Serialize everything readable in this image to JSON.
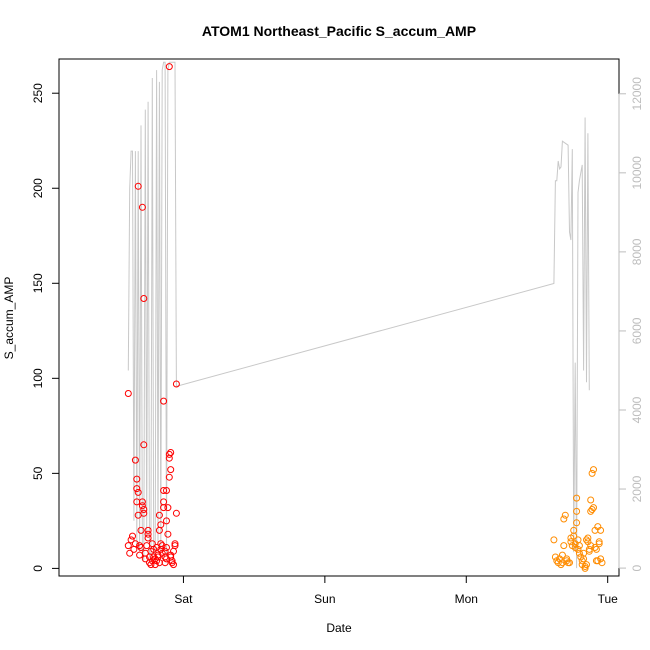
{
  "chart_data": {
    "type": "scatter",
    "title": "ATOM1 Northeast_Pacific S_accum_AMP",
    "xlabel": "Date",
    "ylabel": "S_accum_AMP",
    "x_unit": "days",
    "x_range": [
      -0.88,
      3.08
    ],
    "x_ticks": [
      {
        "label": "Sat",
        "value": 0
      },
      {
        "label": "Sun",
        "value": 1
      },
      {
        "label": "Mon",
        "value": 2
      },
      {
        "label": "Tue",
        "value": 3
      }
    ],
    "y_left": {
      "range": [
        -4,
        268
      ],
      "ticks": [
        0,
        50,
        100,
        150,
        200,
        250
      ]
    },
    "y_right": {
      "range": [
        -200,
        12880
      ],
      "ticks": [
        0,
        2000,
        4000,
        6000,
        8000,
        10000,
        12000
      ],
      "color": "#bdbdbd"
    },
    "grid": false,
    "series": [
      {
        "kind": "points",
        "color": "#ff0000",
        "points": [
          [
            -0.39,
            92
          ],
          [
            -0.39,
            12
          ],
          [
            -0.38,
            8
          ],
          [
            -0.37,
            15
          ],
          [
            -0.36,
            17
          ],
          [
            -0.35,
            10
          ],
          [
            -0.34,
            13
          ],
          [
            -0.34,
            57
          ],
          [
            -0.33,
            42
          ],
          [
            -0.33,
            47
          ],
          [
            -0.33,
            35
          ],
          [
            -0.32,
            201
          ],
          [
            -0.32,
            40
          ],
          [
            -0.32,
            28
          ],
          [
            -0.31,
            12
          ],
          [
            -0.31,
            7
          ],
          [
            -0.3,
            20
          ],
          [
            -0.3,
            11
          ],
          [
            -0.29,
            190
          ],
          [
            -0.29,
            33
          ],
          [
            -0.29,
            35
          ],
          [
            -0.28,
            142
          ],
          [
            -0.28,
            65
          ],
          [
            -0.28,
            29
          ],
          [
            -0.28,
            31
          ],
          [
            -0.27,
            5
          ],
          [
            -0.27,
            8
          ],
          [
            -0.26,
            12
          ],
          [
            -0.25,
            18
          ],
          [
            -0.25,
            20
          ],
          [
            -0.25,
            16
          ],
          [
            -0.24,
            6
          ],
          [
            -0.24,
            3
          ],
          [
            -0.23,
            9
          ],
          [
            -0.23,
            2
          ],
          [
            -0.22,
            4
          ],
          [
            -0.22,
            13
          ],
          [
            -0.21,
            6
          ],
          [
            -0.21,
            10
          ],
          [
            -0.2,
            5
          ],
          [
            -0.2,
            2
          ],
          [
            -0.19,
            11
          ],
          [
            -0.19,
            4
          ],
          [
            -0.18,
            6
          ],
          [
            -0.18,
            7
          ],
          [
            -0.17,
            28
          ],
          [
            -0.17,
            20
          ],
          [
            -0.17,
            3
          ],
          [
            -0.16,
            13
          ],
          [
            -0.16,
            10
          ],
          [
            -0.16,
            23
          ],
          [
            -0.15,
            8
          ],
          [
            -0.15,
            12
          ],
          [
            -0.14,
            88
          ],
          [
            -0.14,
            35
          ],
          [
            -0.14,
            32
          ],
          [
            -0.14,
            41
          ],
          [
            -0.13,
            9
          ],
          [
            -0.13,
            6
          ],
          [
            -0.13,
            3
          ],
          [
            -0.12,
            25
          ],
          [
            -0.12,
            41
          ],
          [
            -0.12,
            5
          ],
          [
            -0.12,
            11
          ],
          [
            -0.11,
            18
          ],
          [
            -0.11,
            32
          ],
          [
            -0.1,
            264
          ],
          [
            -0.1,
            48
          ],
          [
            -0.1,
            58
          ],
          [
            -0.1,
            60
          ],
          [
            -0.09,
            52
          ],
          [
            -0.09,
            61
          ],
          [
            -0.09,
            6
          ],
          [
            -0.09,
            7
          ],
          [
            -0.08,
            3
          ],
          [
            -0.08,
            4
          ],
          [
            -0.07,
            2
          ],
          [
            -0.07,
            9
          ],
          [
            -0.06,
            12
          ],
          [
            -0.06,
            13
          ],
          [
            -0.05,
            29
          ],
          [
            -0.05,
            97
          ]
        ]
      },
      {
        "kind": "points",
        "color": "#ff8c00",
        "points": [
          [
            2.62,
            15
          ],
          [
            2.63,
            6
          ],
          [
            2.64,
            4
          ],
          [
            2.65,
            3
          ],
          [
            2.66,
            5
          ],
          [
            2.67,
            2
          ],
          [
            2.68,
            3
          ],
          [
            2.68,
            7
          ],
          [
            2.69,
            12
          ],
          [
            2.69,
            26
          ],
          [
            2.7,
            28
          ],
          [
            2.71,
            4
          ],
          [
            2.71,
            5
          ],
          [
            2.72,
            3
          ],
          [
            2.73,
            3
          ],
          [
            2.74,
            16
          ],
          [
            2.74,
            14
          ],
          [
            2.75,
            12
          ],
          [
            2.76,
            17
          ],
          [
            2.76,
            20
          ],
          [
            2.77,
            11
          ],
          [
            2.77,
            13
          ],
          [
            2.78,
            24
          ],
          [
            2.78,
            30
          ],
          [
            2.78,
            37
          ],
          [
            2.79,
            15
          ],
          [
            2.79,
            10
          ],
          [
            2.8,
            8
          ],
          [
            2.8,
            12
          ],
          [
            2.81,
            6
          ],
          [
            2.82,
            4
          ],
          [
            2.82,
            2
          ],
          [
            2.83,
            5
          ],
          [
            2.83,
            8
          ],
          [
            2.84,
            1
          ],
          [
            2.84,
            0
          ],
          [
            2.85,
            2
          ],
          [
            2.85,
            15
          ],
          [
            2.86,
            16
          ],
          [
            2.86,
            14
          ],
          [
            2.87,
            10
          ],
          [
            2.87,
            9
          ],
          [
            2.88,
            12
          ],
          [
            2.88,
            30
          ],
          [
            2.88,
            36
          ],
          [
            2.89,
            50
          ],
          [
            2.89,
            31
          ],
          [
            2.9,
            52
          ],
          [
            2.9,
            32
          ],
          [
            2.91,
            20
          ],
          [
            2.91,
            11
          ],
          [
            2.92,
            4
          ],
          [
            2.92,
            10
          ],
          [
            2.93,
            4
          ],
          [
            2.93,
            22
          ],
          [
            2.94,
            14
          ],
          [
            2.94,
            13
          ],
          [
            2.95,
            20
          ],
          [
            2.95,
            5
          ],
          [
            2.96,
            3
          ]
        ]
      },
      {
        "kind": "line",
        "axis": "right",
        "color": "#c8c8c8",
        "points": [
          [
            -0.39,
            5000
          ],
          [
            -0.38,
            9600
          ],
          [
            -0.37,
            10550
          ],
          [
            -0.36,
            10550
          ],
          [
            -0.35,
            1200
          ],
          [
            -0.34,
            10550
          ],
          [
            -0.33,
            600
          ],
          [
            -0.32,
            10550
          ],
          [
            -0.31,
            400
          ],
          [
            -0.3,
            11200
          ],
          [
            -0.29,
            300
          ],
          [
            -0.28,
            200
          ],
          [
            -0.27,
            11600
          ],
          [
            -0.26,
            800
          ],
          [
            -0.25,
            11800
          ],
          [
            -0.24,
            300
          ],
          [
            -0.23,
            200
          ],
          [
            -0.22,
            12400
          ],
          [
            -0.21,
            400
          ],
          [
            -0.2,
            300
          ],
          [
            -0.19,
            12600
          ],
          [
            -0.18,
            600
          ],
          [
            -0.17,
            12300
          ],
          [
            -0.16,
            400
          ],
          [
            -0.15,
            12600
          ],
          [
            -0.14,
            12800
          ],
          [
            -0.13,
            12800
          ],
          [
            -0.12,
            300
          ],
          [
            -0.11,
            12600
          ],
          [
            -0.1,
            12800
          ],
          [
            -0.09,
            12800
          ],
          [
            -0.06,
            12800
          ],
          [
            -0.05,
            4600
          ],
          [
            2.62,
            7200
          ],
          [
            2.63,
            9800
          ],
          [
            2.64,
            9800
          ],
          [
            2.65,
            10300
          ],
          [
            2.66,
            10100
          ],
          [
            2.67,
            10150
          ],
          [
            2.68,
            10800
          ],
          [
            2.72,
            10700
          ],
          [
            2.73,
            8500
          ],
          [
            2.74,
            8300
          ],
          [
            2.75,
            10600
          ],
          [
            2.76,
            400
          ],
          [
            2.77,
            5200
          ],
          [
            2.78,
            0
          ],
          [
            2.79,
            9500
          ],
          [
            2.8,
            9800
          ],
          [
            2.81,
            10000
          ],
          [
            2.82,
            10200
          ],
          [
            2.83,
            5000
          ],
          [
            2.84,
            11400
          ],
          [
            2.85,
            4700
          ],
          [
            2.86,
            11000
          ],
          [
            2.87,
            4500
          ]
        ]
      }
    ]
  }
}
